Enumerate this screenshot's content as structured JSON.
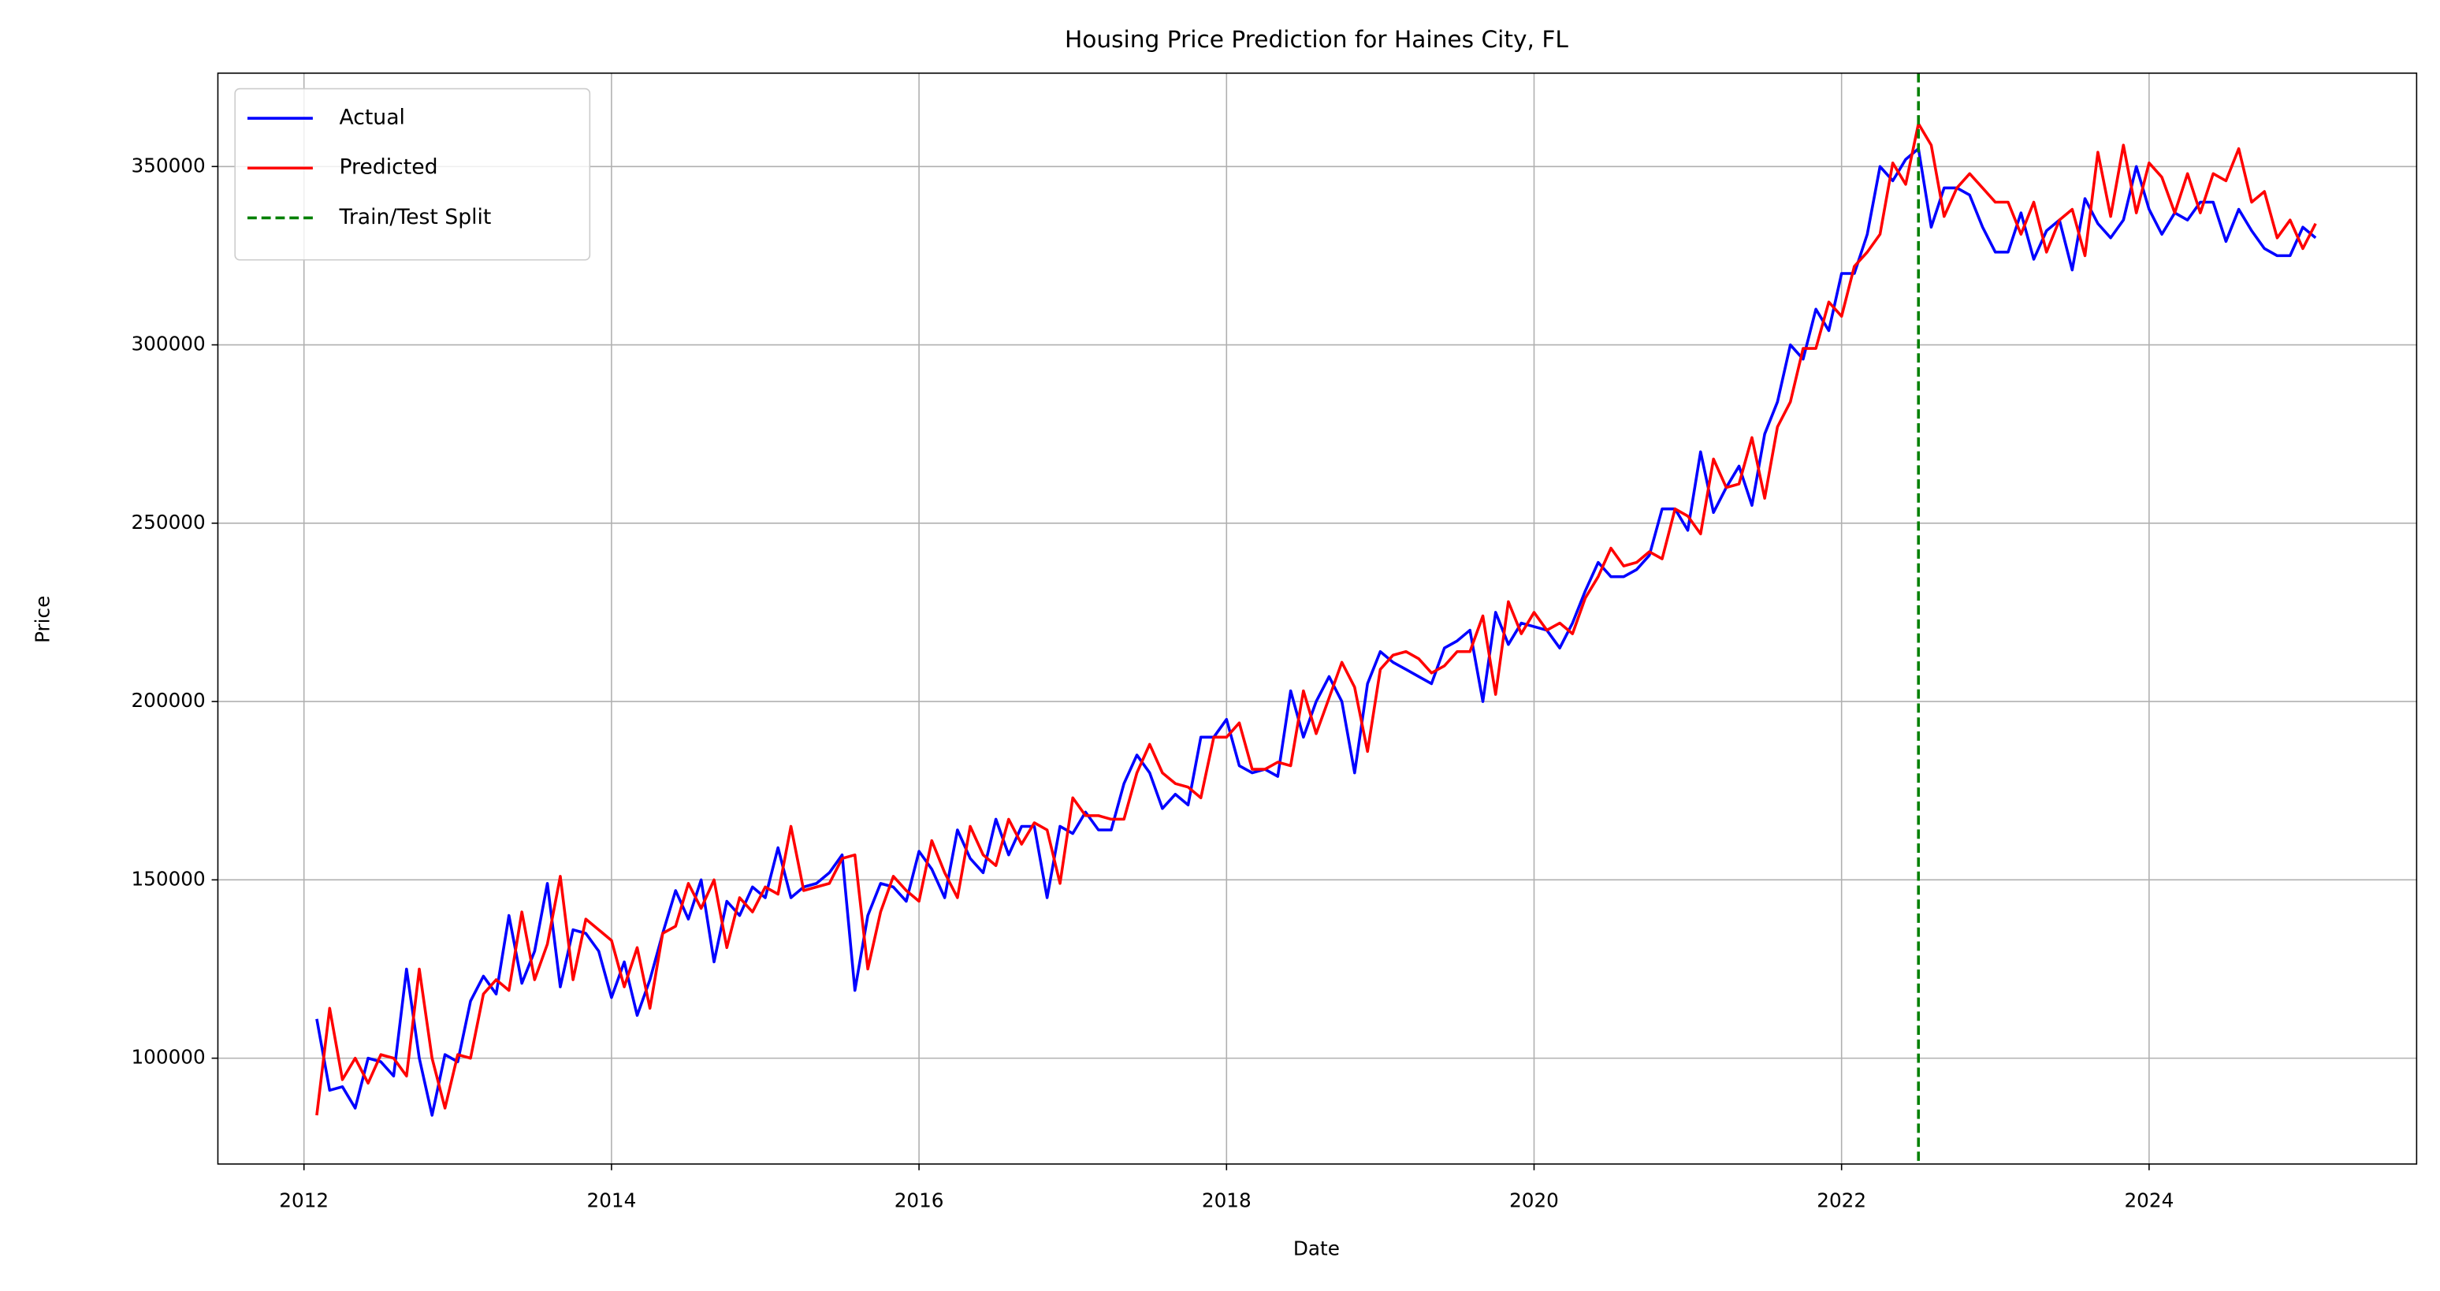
{
  "chart_data": {
    "type": "line",
    "title": "Housing Price Prediction for Haines City, FL",
    "x_label": "Date",
    "y_label": "Price",
    "xlim": [
      2011.44,
      2025.74
    ],
    "ylim": [
      70330,
      376180
    ],
    "xticks": [
      2012,
      2014,
      2016,
      2018,
      2020,
      2022,
      2024
    ],
    "yticks": [
      100000,
      150000,
      200000,
      250000,
      300000,
      350000
    ],
    "grid": true,
    "legend": "upper left",
    "x": [
      2012.083,
      2012.167,
      2012.25,
      2012.333,
      2012.417,
      2012.5,
      2012.583,
      2012.667,
      2012.75,
      2012.833,
      2012.917,
      2013.0,
      2013.083,
      2013.167,
      2013.25,
      2013.333,
      2013.417,
      2013.5,
      2013.583,
      2013.667,
      2013.75,
      2013.833,
      2013.917,
      2014.0,
      2014.083,
      2014.167,
      2014.25,
      2014.333,
      2014.417,
      2014.5,
      2014.583,
      2014.667,
      2014.75,
      2014.833,
      2014.917,
      2015.0,
      2015.083,
      2015.167,
      2015.25,
      2015.333,
      2015.417,
      2015.5,
      2015.583,
      2015.667,
      2015.75,
      2015.833,
      2015.917,
      2016.0,
      2016.083,
      2016.167,
      2016.25,
      2016.333,
      2016.417,
      2016.5,
      2016.583,
      2016.667,
      2016.75,
      2016.833,
      2016.917,
      2017.0,
      2017.083,
      2017.167,
      2017.25,
      2017.333,
      2017.417,
      2017.5,
      2017.583,
      2017.667,
      2017.75,
      2017.833,
      2017.917,
      2018.0,
      2018.083,
      2018.167,
      2018.25,
      2018.333,
      2018.417,
      2018.5,
      2018.583,
      2018.667,
      2018.75,
      2018.833,
      2018.917,
      2019.0,
      2019.083,
      2019.167,
      2019.25,
      2019.333,
      2019.417,
      2019.5,
      2019.583,
      2019.667,
      2019.75,
      2019.833,
      2019.917,
      2020.0,
      2020.083,
      2020.167,
      2020.25,
      2020.333,
      2020.417,
      2020.5,
      2020.583,
      2020.667,
      2020.75,
      2020.833,
      2020.917,
      2021.0,
      2021.083,
      2021.167,
      2021.25,
      2021.333,
      2021.417,
      2021.5,
      2021.583,
      2021.667,
      2021.75,
      2021.833,
      2021.917,
      2022.0,
      2022.083,
      2022.167,
      2022.25,
      2022.333,
      2022.417,
      2022.5,
      2022.583,
      2022.667,
      2022.75,
      2022.833,
      2022.917,
      2023.0,
      2023.083,
      2023.167,
      2023.25,
      2023.333,
      2023.417,
      2023.5,
      2023.583,
      2023.667,
      2023.75,
      2023.833,
      2023.917,
      2024.0,
      2024.083,
      2024.167,
      2024.25,
      2024.333,
      2024.417,
      2024.5,
      2024.583,
      2024.667,
      2024.75,
      2024.833,
      2024.917,
      2025.0,
      2025.083
    ],
    "series": [
      {
        "name": "Actual",
        "color": "#0000ff",
        "values": [
          111000,
          91000,
          92000,
          86000,
          100000,
          99000,
          95000,
          125000,
          100000,
          84000,
          101000,
          99000,
          116000,
          123000,
          118000,
          140000,
          121000,
          130000,
          149000,
          120000,
          136000,
          135000,
          130000,
          117000,
          127000,
          112000,
          122000,
          135000,
          147000,
          139000,
          150000,
          127000,
          144000,
          140000,
          148000,
          145000,
          159000,
          145000,
          148000,
          149000,
          152000,
          157000,
          119000,
          140000,
          149000,
          148000,
          144000,
          158000,
          153000,
          145000,
          164000,
          156000,
          152000,
          167000,
          157000,
          165000,
          165000,
          145000,
          165000,
          163000,
          169000,
          164000,
          164000,
          177000,
          185000,
          180000,
          170000,
          174000,
          171000,
          190000,
          190000,
          195000,
          182000,
          180000,
          181000,
          179000,
          203000,
          190000,
          200000,
          207000,
          200000,
          180000,
          205000,
          214000,
          211000,
          209000,
          207000,
          205000,
          215000,
          217000,
          220000,
          200000,
          225000,
          216000,
          222000,
          221000,
          220000,
          215000,
          222000,
          231000,
          239000,
          235000,
          235000,
          237000,
          241000,
          254000,
          254000,
          248000,
          270000,
          253000,
          260000,
          266000,
          255000,
          275000,
          284000,
          300000,
          296000,
          310000,
          304000,
          320000,
          320000,
          331000,
          350000,
          346000,
          352000,
          355000,
          333000,
          344000,
          344000,
          342000,
          333000,
          326000,
          326000,
          337000,
          324000,
          332000,
          335000,
          321000,
          341000,
          334000,
          330000,
          335000,
          350000,
          338000,
          331000,
          337000,
          335000,
          340000,
          340000,
          329000,
          338000,
          332000,
          327000,
          325000,
          325000,
          333000,
          330000
        ]
      },
      {
        "name": "Predicted",
        "color": "#ff0000",
        "values": [
          84000,
          114000,
          94000,
          100000,
          93000,
          101000,
          100000,
          95000,
          125000,
          100000,
          86000,
          101000,
          100000,
          118000,
          122000,
          119000,
          141000,
          122000,
          132000,
          151000,
          122000,
          139000,
          136000,
          133000,
          120000,
          131000,
          114000,
          135000,
          137000,
          149000,
          142000,
          150000,
          131000,
          145000,
          141000,
          148000,
          146000,
          165000,
          147000,
          148000,
          149000,
          156000,
          157000,
          125000,
          141000,
          151000,
          147000,
          144000,
          161000,
          152000,
          145000,
          165000,
          157000,
          154000,
          167000,
          160000,
          166000,
          164000,
          149000,
          173000,
          168000,
          168000,
          167000,
          167000,
          180000,
          188000,
          180000,
          177000,
          176000,
          173000,
          190000,
          190000,
          194000,
          181000,
          181000,
          183000,
          182000,
          203000,
          191000,
          201000,
          211000,
          204000,
          186000,
          209000,
          213000,
          214000,
          212000,
          208000,
          210000,
          214000,
          214000,
          224000,
          202000,
          228000,
          219000,
          225000,
          220000,
          222000,
          219000,
          229000,
          235000,
          243000,
          238000,
          239000,
          242000,
          240000,
          254000,
          252000,
          247000,
          268000,
          260000,
          261000,
          274000,
          257000,
          277000,
          284000,
          299000,
          299000,
          312000,
          308000,
          322000,
          326000,
          331000,
          351000,
          345000,
          362000,
          356000,
          336000,
          344000,
          348000,
          344000,
          340000,
          340000,
          331000,
          340000,
          326000,
          335000,
          338000,
          325000,
          354000,
          336000,
          356000,
          337000,
          351000,
          347000,
          337000,
          348000,
          337000,
          348000,
          346000,
          355000,
          340000,
          343000,
          330000,
          335000,
          327000,
          334000
        ]
      }
    ],
    "vlines": [
      {
        "name": "Train/Test Split",
        "x": 2022.5,
        "color": "#008000"
      }
    ]
  }
}
